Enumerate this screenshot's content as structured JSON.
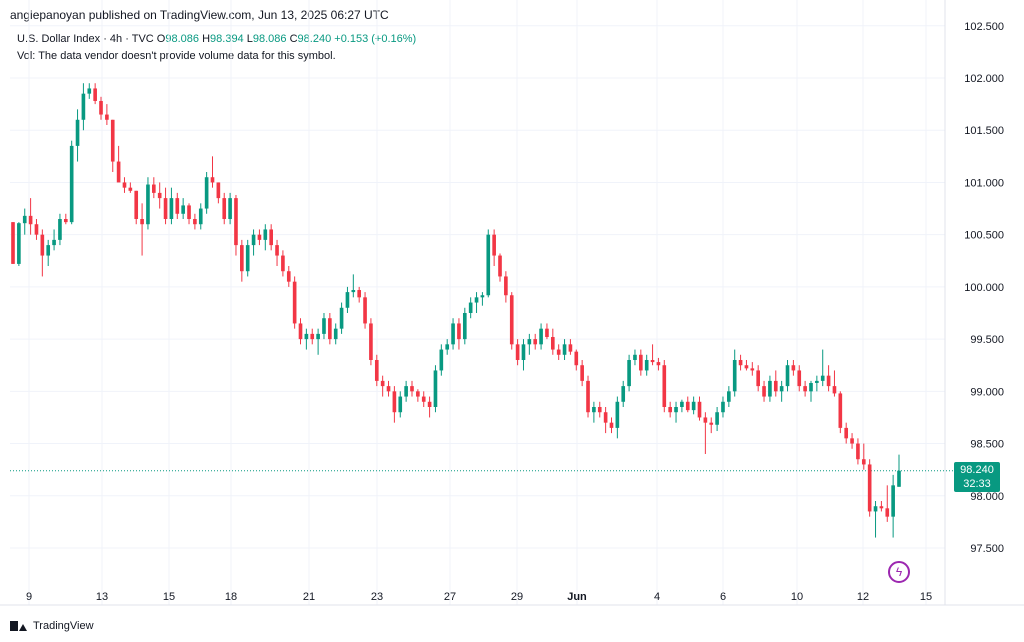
{
  "header": {
    "text": "angiepanoyan published on TradingView.com, Jun 13, 2025 06:27 UTC"
  },
  "legend": {
    "symbol": "U.S. Dollar Index · 4h · TVC",
    "o_label": "O",
    "o": "98.086",
    "h_label": "H",
    "h": "98.394",
    "l_label": "L",
    "l": "98.086",
    "c_label": "C",
    "c": "98.240",
    "change": "+0.153 (+0.16%)",
    "vol_note": "Vol: The data vendor doesn't provide volume data for this symbol."
  },
  "price_badge": {
    "price": "98.240",
    "countdown": "32:33"
  },
  "footer": {
    "brand": "TradingView"
  },
  "colors": {
    "up": "#089981",
    "down": "#f23645",
    "grid": "#f0f3fa",
    "axis_text": "#131722",
    "last_price_line": "#089981"
  },
  "icons": {
    "logo": "tradingview-logo-icon",
    "bolt": "lightning-bolt-icon"
  },
  "chart_data": {
    "type": "candlestick",
    "y_ticks": [
      "102.500",
      "102.000",
      "101.500",
      "101.000",
      "100.500",
      "100.000",
      "99.500",
      "99.000",
      "98.500",
      "98.000",
      "97.500"
    ],
    "ylim": [
      97.2,
      102.6
    ],
    "x_ticks": [
      "9",
      "13",
      "15",
      "18",
      "21",
      "23",
      "27",
      "29",
      "Jun",
      "4",
      "6",
      "10",
      "12",
      "15"
    ],
    "last_price": 98.24,
    "candles": [
      [
        100.62,
        100.62,
        100.22,
        100.22
      ],
      [
        100.22,
        100.62,
        100.2,
        100.61
      ],
      [
        100.61,
        100.75,
        100.5,
        100.68
      ],
      [
        100.68,
        100.85,
        100.5,
        100.6
      ],
      [
        100.6,
        100.65,
        100.45,
        100.5
      ],
      [
        100.5,
        100.55,
        100.1,
        100.3
      ],
      [
        100.3,
        100.45,
        100.2,
        100.4
      ],
      [
        100.4,
        100.55,
        100.35,
        100.45
      ],
      [
        100.45,
        100.7,
        100.4,
        100.65
      ],
      [
        100.65,
        100.7,
        100.6,
        100.62
      ],
      [
        100.62,
        101.4,
        100.6,
        101.35
      ],
      [
        101.35,
        101.7,
        101.2,
        101.6
      ],
      [
        101.6,
        101.95,
        101.5,
        101.85
      ],
      [
        101.85,
        101.95,
        101.8,
        101.9
      ],
      [
        101.9,
        101.95,
        101.75,
        101.78
      ],
      [
        101.78,
        101.82,
        101.6,
        101.65
      ],
      [
        101.65,
        101.75,
        101.55,
        101.6
      ],
      [
        101.6,
        101.6,
        101.1,
        101.2
      ],
      [
        101.2,
        101.35,
        101.05,
        101.0
      ],
      [
        101.0,
        101.05,
        100.9,
        100.95
      ],
      [
        100.95,
        101.0,
        100.9,
        100.92
      ],
      [
        100.92,
        100.92,
        100.6,
        100.65
      ],
      [
        100.65,
        100.8,
        100.3,
        100.6
      ],
      [
        100.6,
        101.05,
        100.55,
        100.98
      ],
      [
        100.98,
        101.05,
        100.85,
        100.9
      ],
      [
        100.9,
        101.0,
        100.75,
        100.85
      ],
      [
        100.85,
        100.95,
        100.6,
        100.65
      ],
      [
        100.65,
        100.95,
        100.6,
        100.85
      ],
      [
        100.85,
        100.9,
        100.65,
        100.7
      ],
      [
        100.7,
        100.85,
        100.65,
        100.78
      ],
      [
        100.78,
        100.8,
        100.6,
        100.65
      ],
      [
        100.65,
        100.7,
        100.55,
        100.6
      ],
      [
        100.6,
        100.8,
        100.55,
        100.75
      ],
      [
        100.75,
        101.1,
        100.7,
        101.05
      ],
      [
        101.05,
        101.25,
        100.95,
        101.0
      ],
      [
        101.0,
        101.0,
        100.8,
        100.85
      ],
      [
        100.85,
        100.9,
        100.6,
        100.65
      ],
      [
        100.65,
        100.9,
        100.6,
        100.85
      ],
      [
        100.85,
        100.88,
        100.3,
        100.4
      ],
      [
        100.4,
        100.45,
        100.05,
        100.15
      ],
      [
        100.15,
        100.45,
        100.1,
        100.4
      ],
      [
        100.4,
        100.55,
        100.3,
        100.5
      ],
      [
        100.5,
        100.55,
        100.4,
        100.45
      ],
      [
        100.45,
        100.6,
        100.35,
        100.55
      ],
      [
        100.55,
        100.6,
        100.35,
        100.4
      ],
      [
        100.4,
        100.45,
        100.2,
        100.3
      ],
      [
        100.3,
        100.35,
        100.1,
        100.15
      ],
      [
        100.15,
        100.2,
        100.0,
        100.05
      ],
      [
        100.05,
        100.1,
        99.6,
        99.65
      ],
      [
        99.65,
        99.7,
        99.45,
        99.5
      ],
      [
        99.5,
        99.6,
        99.4,
        99.55
      ],
      [
        99.55,
        99.6,
        99.45,
        99.5
      ],
      [
        99.5,
        99.6,
        99.35,
        99.55
      ],
      [
        99.55,
        99.75,
        99.5,
        99.7
      ],
      [
        99.7,
        99.75,
        99.45,
        99.5
      ],
      [
        99.5,
        99.65,
        99.45,
        99.6
      ],
      [
        99.6,
        99.85,
        99.55,
        99.8
      ],
      [
        99.8,
        100.0,
        99.75,
        99.95
      ],
      [
        99.95,
        100.12,
        99.9,
        99.97
      ],
      [
        99.97,
        100.0,
        99.85,
        99.9
      ],
      [
        99.9,
        99.95,
        99.6,
        99.65
      ],
      [
        99.65,
        99.7,
        99.25,
        99.3
      ],
      [
        99.3,
        99.35,
        99.05,
        99.1
      ],
      [
        99.1,
        99.15,
        98.95,
        99.05
      ],
      [
        99.05,
        99.1,
        98.95,
        99.0
      ],
      [
        99.0,
        99.05,
        98.7,
        98.8
      ],
      [
        98.8,
        99.0,
        98.75,
        98.95
      ],
      [
        98.95,
        99.1,
        98.9,
        99.05
      ],
      [
        99.05,
        99.1,
        98.95,
        99.0
      ],
      [
        99.0,
        99.02,
        98.9,
        98.95
      ],
      [
        98.95,
        99.0,
        98.85,
        98.9
      ],
      [
        98.9,
        98.95,
        98.75,
        98.85
      ],
      [
        98.85,
        99.25,
        98.8,
        99.2
      ],
      [
        99.2,
        99.45,
        99.15,
        99.4
      ],
      [
        99.4,
        99.5,
        99.35,
        99.45
      ],
      [
        99.45,
        99.7,
        99.4,
        99.65
      ],
      [
        99.65,
        99.7,
        99.4,
        99.5
      ],
      [
        99.5,
        99.8,
        99.45,
        99.75
      ],
      [
        99.75,
        99.9,
        99.7,
        99.85
      ],
      [
        99.85,
        99.95,
        99.75,
        99.9
      ],
      [
        99.9,
        99.95,
        99.82,
        99.92
      ],
      [
        99.92,
        100.55,
        99.9,
        100.5
      ],
      [
        100.5,
        100.55,
        100.2,
        100.3
      ],
      [
        100.3,
        100.32,
        100.05,
        100.1
      ],
      [
        100.1,
        100.15,
        99.85,
        99.92
      ],
      [
        99.92,
        99.95,
        99.4,
        99.45
      ],
      [
        99.45,
        99.5,
        99.25,
        99.3
      ],
      [
        99.3,
        99.5,
        99.2,
        99.45
      ],
      [
        99.45,
        99.55,
        99.35,
        99.5
      ],
      [
        99.5,
        99.55,
        99.4,
        99.45
      ],
      [
        99.45,
        99.65,
        99.4,
        99.6
      ],
      [
        99.6,
        99.65,
        99.5,
        99.52
      ],
      [
        99.52,
        99.6,
        99.35,
        99.4
      ],
      [
        99.4,
        99.45,
        99.3,
        99.35
      ],
      [
        99.35,
        99.5,
        99.3,
        99.45
      ],
      [
        99.45,
        99.5,
        99.35,
        99.38
      ],
      [
        99.38,
        99.4,
        99.2,
        99.25
      ],
      [
        99.25,
        99.3,
        99.05,
        99.1
      ],
      [
        99.1,
        99.15,
        98.75,
        98.8
      ],
      [
        98.8,
        98.9,
        98.7,
        98.85
      ],
      [
        98.85,
        98.9,
        98.75,
        98.8
      ],
      [
        98.8,
        98.85,
        98.6,
        98.7
      ],
      [
        98.7,
        98.75,
        98.6,
        98.65
      ],
      [
        98.65,
        98.95,
        98.55,
        98.9
      ],
      [
        98.9,
        99.1,
        98.85,
        99.05
      ],
      [
        99.05,
        99.35,
        99.0,
        99.3
      ],
      [
        99.3,
        99.4,
        99.25,
        99.35
      ],
      [
        99.35,
        99.4,
        99.15,
        99.2
      ],
      [
        99.2,
        99.35,
        99.15,
        99.3
      ],
      [
        99.3,
        99.45,
        99.25,
        99.28
      ],
      [
        99.28,
        99.32,
        99.2,
        99.25
      ],
      [
        99.25,
        99.3,
        98.8,
        98.85
      ],
      [
        98.85,
        98.9,
        98.75,
        98.8
      ],
      [
        98.8,
        98.9,
        98.7,
        98.85
      ],
      [
        98.85,
        98.92,
        98.8,
        98.9
      ],
      [
        98.9,
        98.95,
        98.8,
        98.82
      ],
      [
        98.82,
        98.95,
        98.78,
        98.9
      ],
      [
        98.9,
        98.95,
        98.72,
        98.75
      ],
      [
        98.75,
        98.8,
        98.4,
        98.7
      ],
      [
        98.7,
        98.75,
        98.6,
        98.68
      ],
      [
        98.68,
        98.85,
        98.62,
        98.8
      ],
      [
        98.8,
        98.95,
        98.75,
        98.9
      ],
      [
        98.9,
        99.05,
        98.85,
        99.0
      ],
      [
        99.0,
        99.4,
        98.95,
        99.3
      ],
      [
        99.3,
        99.35,
        99.2,
        99.25
      ],
      [
        99.25,
        99.3,
        99.2,
        99.22
      ],
      [
        99.22,
        99.28,
        99.15,
        99.2
      ],
      [
        99.2,
        99.25,
        99.0,
        99.05
      ],
      [
        99.05,
        99.1,
        98.9,
        98.95
      ],
      [
        98.95,
        99.15,
        98.9,
        99.1
      ],
      [
        99.1,
        99.2,
        98.95,
        99.0
      ],
      [
        99.0,
        99.1,
        98.9,
        99.05
      ],
      [
        99.05,
        99.3,
        99.0,
        99.25
      ],
      [
        99.25,
        99.3,
        99.15,
        99.2
      ],
      [
        99.2,
        99.25,
        99.0,
        99.05
      ],
      [
        99.05,
        99.1,
        98.95,
        99.0
      ],
      [
        99.0,
        99.1,
        98.9,
        99.08
      ],
      [
        99.08,
        99.15,
        99.0,
        99.1
      ],
      [
        99.1,
        99.4,
        99.05,
        99.15
      ],
      [
        99.15,
        99.25,
        99.0,
        99.05
      ],
      [
        99.05,
        99.2,
        98.95,
        98.98
      ],
      [
        98.98,
        99.0,
        98.6,
        98.65
      ],
      [
        98.65,
        98.7,
        98.5,
        98.55
      ],
      [
        98.55,
        98.6,
        98.45,
        98.5
      ],
      [
        98.5,
        98.55,
        98.3,
        98.35
      ],
      [
        98.35,
        98.5,
        98.25,
        98.3
      ],
      [
        98.3,
        98.35,
        97.8,
        97.85
      ],
      [
        97.85,
        97.95,
        97.6,
        97.9
      ],
      [
        97.9,
        97.95,
        97.85,
        97.88
      ],
      [
        97.88,
        98.1,
        97.75,
        97.8
      ],
      [
        97.8,
        98.2,
        97.6,
        98.1
      ],
      [
        98.086,
        98.394,
        98.086,
        98.24
      ]
    ]
  }
}
